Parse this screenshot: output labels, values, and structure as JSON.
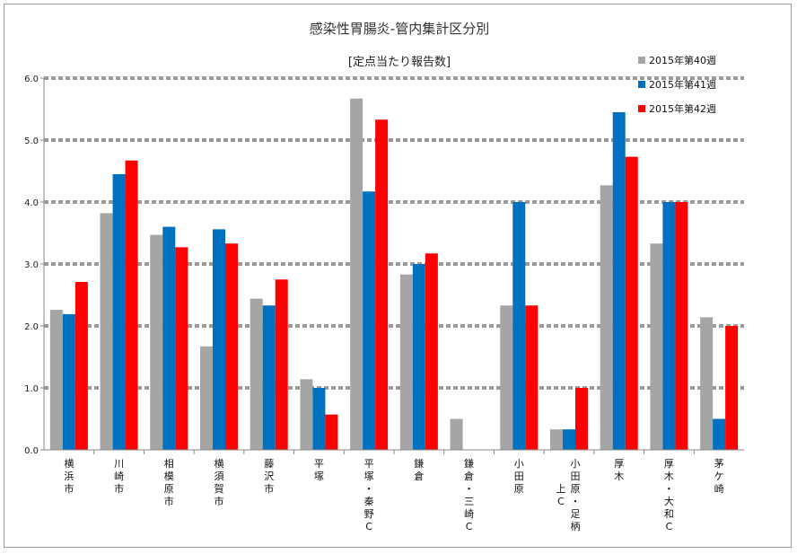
{
  "chart_data": {
    "type": "bar",
    "title": "感染性胃腸炎-管内集計区分別",
    "subtitle": "[定点当たり報告数]",
    "xlabel": "",
    "ylabel": "",
    "ylim": [
      0,
      6
    ],
    "yticks": [
      "0.0",
      "1.0",
      "2.0",
      "3.0",
      "4.0",
      "5.0",
      "6.0"
    ],
    "grid": true,
    "legend_position": "top-right",
    "categories": [
      "横浜市",
      "川崎市",
      "相模原市",
      "横須賀市",
      "藤沢市",
      "平塚",
      "平塚・秦野C",
      "鎌倉",
      "鎌倉・三崎C",
      "小田原",
      "小田原・足柄上C",
      "厚木",
      "厚木・大和C",
      "茅ケ崎"
    ],
    "series": [
      {
        "name": "2015年第40週",
        "color": "#a5a5a5",
        "values": [
          2.26,
          3.82,
          3.47,
          1.67,
          2.44,
          1.14,
          5.67,
          2.83,
          0.5,
          2.33,
          0.33,
          4.27,
          3.33,
          2.14
        ]
      },
      {
        "name": "2015年第41週",
        "color": "#0070c0",
        "values": [
          2.19,
          4.45,
          3.6,
          3.56,
          2.33,
          1.0,
          4.17,
          3.0,
          0.0,
          4.0,
          0.33,
          5.45,
          4.0,
          0.5
        ]
      },
      {
        "name": "2015年第42週",
        "color": "#ff0000",
        "values": [
          2.71,
          4.67,
          3.27,
          3.33,
          2.75,
          0.57,
          5.33,
          3.17,
          0.0,
          2.33,
          1.0,
          4.73,
          4.0,
          2.0
        ]
      }
    ]
  }
}
